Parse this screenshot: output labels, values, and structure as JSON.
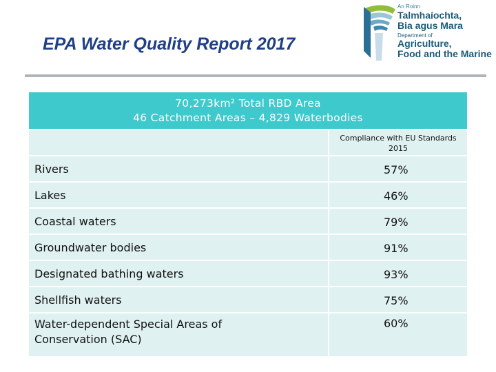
{
  "slide": {
    "title": "EPA Water Quality Report 2017"
  },
  "logo": {
    "line1": "An Roinn",
    "line2": "Talmhaíochta,",
    "line3": "Bia agus Mara",
    "line4": "Department of",
    "line5": "Agriculture,",
    "line6": "Food and the Marine"
  },
  "table": {
    "header_line1": "70,273km² Total RBD Area",
    "header_line2": "46 Catchment Areas – 4,829 Waterbodies",
    "column_header": "Compliance with EU Standards 2015",
    "rows": [
      {
        "label": "Rivers",
        "value": "57%"
      },
      {
        "label": "Lakes",
        "value": "46%"
      },
      {
        "label": "Coastal waters",
        "value": "79%"
      },
      {
        "label": "Groundwater bodies",
        "value": "91%"
      },
      {
        "label": "Designated bathing waters",
        "value": "93%"
      },
      {
        "label": "Shellfish waters",
        "value": "75%"
      },
      {
        "label": "Water-dependent Special Areas of Conservation (SAC)",
        "value": "60%"
      }
    ]
  }
}
